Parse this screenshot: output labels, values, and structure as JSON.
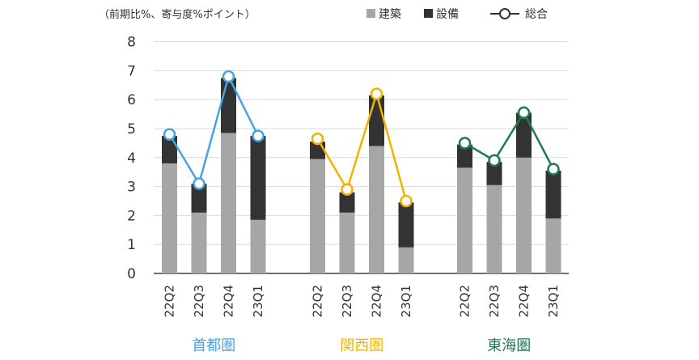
{
  "chart_data": {
    "type": "bar",
    "subtype": "stacked bar with total line",
    "unit_label": "（前期比%、寄与度%ポイント）",
    "ylim": [
      0,
      8
    ],
    "yticks": [
      0,
      1,
      2,
      3,
      4,
      5,
      6,
      7,
      8
    ],
    "grid": true,
    "legend_position": "top-right",
    "legend": {
      "construction": "建築",
      "equipment": "設備",
      "total": "総合"
    },
    "colors": {
      "construction": "#a6a6a6",
      "equipment": "#333333",
      "grid": "#d9d9d9",
      "axis": "#404040"
    },
    "groups": [
      {
        "name": "首都圏",
        "color": "#4aa3df",
        "categories": [
          "22Q2",
          "22Q3",
          "22Q4",
          "23Q1"
        ],
        "construction": [
          3.8,
          2.1,
          4.85,
          1.85
        ],
        "equipment": [
          0.95,
          1.0,
          1.9,
          2.9
        ],
        "total": [
          4.8,
          3.1,
          6.8,
          4.75
        ]
      },
      {
        "name": "関西圏",
        "color": "#f0b400",
        "categories": [
          "22Q2",
          "22Q3",
          "22Q4",
          "23Q1"
        ],
        "construction": [
          3.95,
          2.1,
          4.4,
          0.9
        ],
        "equipment": [
          0.6,
          0.7,
          1.75,
          1.55
        ],
        "total": [
          4.65,
          2.9,
          6.2,
          2.5
        ]
      },
      {
        "name": "東海圏",
        "color": "#1e7a4f",
        "categories": [
          "22Q2",
          "22Q3",
          "22Q4",
          "23Q1"
        ],
        "construction": [
          3.65,
          3.05,
          4.0,
          1.9
        ],
        "equipment": [
          0.8,
          0.8,
          1.55,
          1.65
        ],
        "total": [
          4.5,
          3.9,
          5.55,
          3.6
        ]
      }
    ]
  }
}
